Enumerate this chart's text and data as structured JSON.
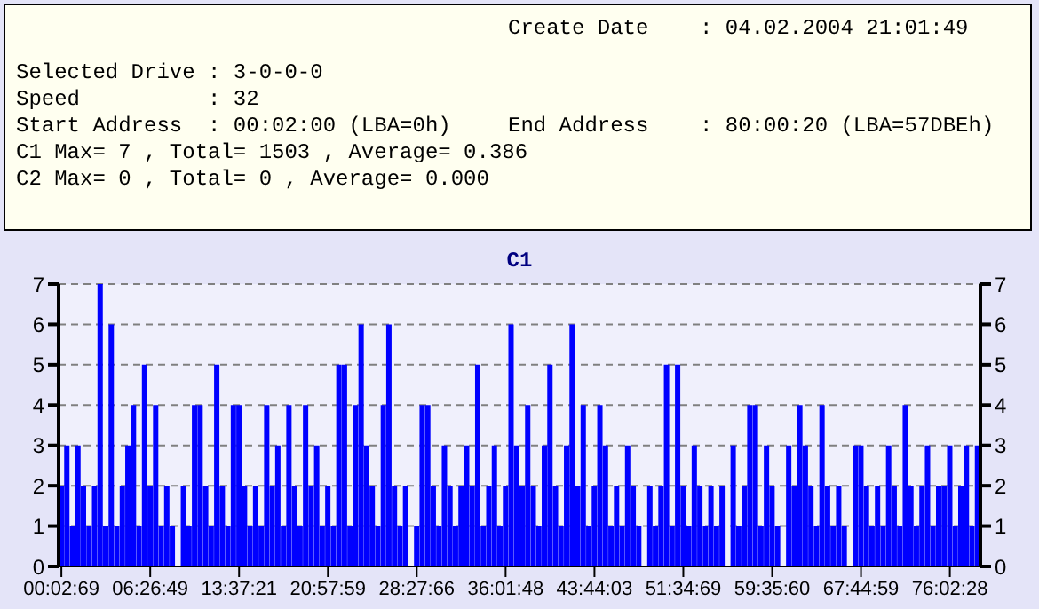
{
  "chart_data": {
    "type": "bar",
    "title": "C1",
    "annotations": [
      "Create Date    : 04.02.2004 21:01:49",
      "Selected Drive : 3-0-0-0",
      "Speed          : 32",
      "Start Address  : 00:02:00 (LBA=0h)",
      "End Address    : 80:00:20 (LBA=57DBEh)",
      "C1 Max= 7 , Total= 1503 , Average= 0.386",
      "C2 Max= 0 , Total= 0 , Average= 0.000"
    ],
    "categories": [
      "00:02:69",
      null,
      null,
      null,
      null,
      null,
      null,
      null,
      null,
      null,
      null,
      null,
      null,
      null,
      null,
      null,
      "06:26:49",
      null,
      null,
      null,
      null,
      null,
      null,
      null,
      null,
      null,
      null,
      null,
      null,
      null,
      null,
      null,
      "13:37:21",
      null,
      null,
      null,
      null,
      null,
      null,
      null,
      null,
      null,
      null,
      null,
      null,
      null,
      null,
      null,
      "20:57:59",
      null,
      null,
      null,
      null,
      null,
      null,
      null,
      null,
      null,
      null,
      null,
      null,
      null,
      null,
      null,
      "28:27:66",
      null,
      null,
      null,
      null,
      null,
      null,
      null,
      null,
      null,
      null,
      null,
      null,
      null,
      null,
      null,
      "36:01:48",
      null,
      null,
      null,
      null,
      null,
      null,
      null,
      null,
      null,
      null,
      null,
      null,
      null,
      null,
      null,
      "43:44:03",
      null,
      null,
      null,
      null,
      null,
      null,
      null,
      null,
      null,
      null,
      null,
      null,
      null,
      null,
      null,
      "51:34:69",
      null,
      null,
      null,
      null,
      null,
      null,
      null,
      null,
      null,
      null,
      null,
      null,
      null,
      null,
      null,
      "59:35:60",
      null,
      null,
      null,
      null,
      null,
      null,
      null,
      null,
      null,
      null,
      null,
      null,
      null,
      null,
      null,
      "67:44:59",
      null,
      null,
      null,
      null,
      null,
      null,
      null,
      null,
      null,
      null,
      null,
      null,
      null,
      null,
      null,
      "76:02:28",
      null,
      null,
      null,
      null,
      null
    ],
    "values": [
      2,
      3,
      1,
      3,
      2,
      1,
      2,
      7,
      1,
      6,
      1,
      2,
      3,
      4,
      1,
      5,
      2,
      4,
      1,
      2,
      1,
      0,
      2,
      1,
      4,
      4,
      2,
      1,
      5,
      2,
      1,
      4,
      4,
      2,
      1,
      2,
      1,
      4,
      2,
      3,
      1,
      4,
      2,
      1,
      4,
      2,
      3,
      1,
      2,
      1,
      5,
      5,
      1,
      4,
      6,
      3,
      2,
      1,
      4,
      6,
      2,
      1,
      2,
      0,
      1,
      4,
      4,
      2,
      1,
      3,
      2,
      1,
      2,
      3,
      2,
      5,
      1,
      2,
      3,
      1,
      2,
      6,
      3,
      2,
      4,
      2,
      1,
      3,
      5,
      2,
      1,
      3,
      6,
      2,
      4,
      1,
      2,
      4,
      3,
      1,
      2,
      1,
      3,
      2,
      1,
      0,
      2,
      1,
      2,
      5,
      1,
      5,
      2,
      1,
      3,
      2,
      1,
      2,
      1,
      2,
      0,
      3,
      1,
      2,
      4,
      4,
      1,
      3,
      2,
      1,
      0,
      3,
      2,
      4,
      3,
      2,
      1,
      4,
      2,
      1,
      2,
      1,
      0,
      3,
      3,
      2,
      1,
      2,
      1,
      3,
      2,
      1,
      4,
      2,
      1,
      2,
      3,
      1,
      2,
      2,
      3,
      1,
      2,
      3,
      1,
      3
    ],
    "color": "#0000ff",
    "ylim": [
      0,
      7
    ],
    "yticks": [
      0,
      1,
      2,
      3,
      4,
      5,
      6,
      7
    ],
    "y2lim": [
      0,
      7
    ],
    "y2ticks": [
      0,
      1,
      2,
      3,
      4,
      5,
      6,
      7
    ],
    "grid": "y"
  }
}
